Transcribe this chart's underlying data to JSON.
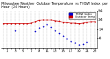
{
  "title": "Milwaukee Weather  Outdoor Temperature  vs THSW Index  per Hour  (24 Hours)",
  "background_color": "#ffffff",
  "grid_color": "#aaaaaa",
  "hours": [
    0,
    1,
    2,
    3,
    4,
    5,
    6,
    7,
    8,
    9,
    10,
    11,
    12,
    13,
    14,
    15,
    16,
    17,
    18,
    19,
    20,
    21,
    22,
    23
  ],
  "temp_values": [
    26,
    26,
    26,
    26,
    26,
    26,
    26,
    27,
    30,
    33,
    34,
    34,
    34,
    32,
    31,
    29,
    28,
    27,
    27,
    26,
    27,
    29,
    30,
    30
  ],
  "thsw_values": [
    null,
    null,
    null,
    10,
    null,
    null,
    null,
    null,
    8,
    16,
    20,
    24,
    18,
    10,
    4,
    -2,
    -8,
    -14,
    -18,
    -22,
    -20,
    -16,
    null,
    null
  ],
  "temp_color": "#cc0000",
  "thsw_color": "#0000cc",
  "ylim_min": -30,
  "ylim_max": 55,
  "ytick_values": [
    -6,
    14,
    34,
    54
  ],
  "ylabel_fontsize": 4,
  "xlabel_fontsize": 3.5,
  "title_fontsize": 3.5,
  "marker_size": 1.5,
  "line_width": 0.6,
  "legend_labels": [
    "THSW Index",
    "Outdoor Temp"
  ]
}
